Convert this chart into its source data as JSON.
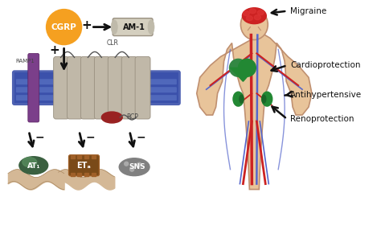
{
  "cgrp_color": "#F5A020",
  "cgrp_text": "CGRP",
  "am1_color": "#D4CFBF",
  "am1_text": "AM-1",
  "membrane_blue": "#3A50AA",
  "membrane_stripe": "#4A5FBB",
  "ramp1_color": "#7B3F8A",
  "clr_color": "#C0B8A8",
  "clr_edge": "#999080",
  "rcp_color": "#992222",
  "at1_dark": "#3A6040",
  "at1_light": "#5A9060",
  "eta_dark": "#7A4A18",
  "eta_light": "#A06028",
  "sns_dark": "#808080",
  "sns_light": "#AAAAAA",
  "membrane_wave": "#D4B896",
  "body_skin": "#E8C49A",
  "body_outline": "#C09070",
  "brain_color": "#CC2222",
  "heart_color": "#228833",
  "kidney_color": "#228833",
  "artery_color": "#CC2222",
  "vein_color": "#5566CC",
  "arrow_color": "#111111",
  "text_color": "#111111",
  "label_fontsize": 7.5,
  "bg_color": "#FFFFFF",
  "ramp1_label": "RAMP1",
  "clr_label": "CLR",
  "rcp_label": "RCP",
  "labels": [
    "Migraine",
    "Cardioprotection",
    "Antihypertensive",
    "Renoprotection"
  ]
}
